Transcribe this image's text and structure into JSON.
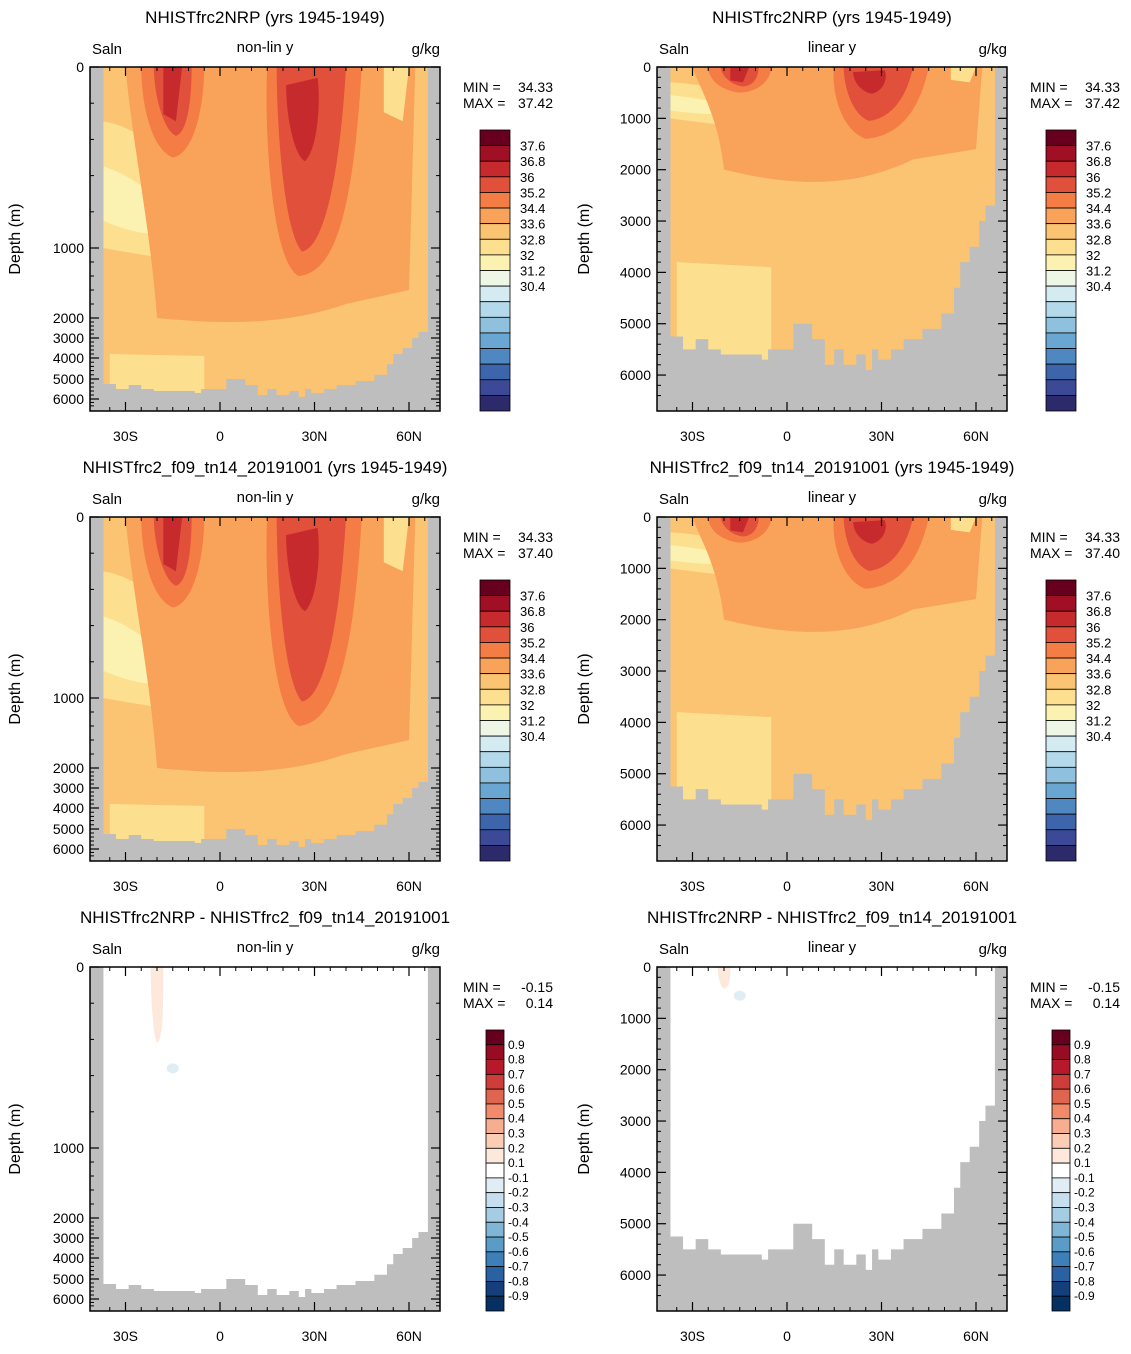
{
  "figure": {
    "colors": {
      "land": "#bebebe",
      "frame": "#000000",
      "background": "#ffffff"
    }
  },
  "chart_data": [
    {
      "type": "heatmap",
      "id": "p1",
      "title": "NHISTfrc2NRP (yrs 1945-1949)",
      "left_label": "Saln",
      "center_label": "non-lin y",
      "right_label": "g/kg",
      "ylabel": "Depth (m)",
      "yscale": "nonlinear",
      "yticks": [
        "0",
        "1000",
        "2000",
        "3000",
        "4000",
        "5000",
        "6000"
      ],
      "xticks": [
        "30S",
        "0",
        "30N",
        "60N"
      ],
      "stats": {
        "min_label": "MIN =",
        "min": "34.33",
        "max_label": "MAX =",
        "max": "37.42"
      },
      "colorbar": {
        "labels": [
          "37.6",
          "36.8",
          "36",
          "35.2",
          "34.4",
          "33.6",
          "32.8",
          "32",
          "31.2",
          "30.4"
        ],
        "colors": [
          "#67001f",
          "#a00f24",
          "#c72a2c",
          "#e0503a",
          "#f47c45",
          "#f9a25a",
          "#fbc472",
          "#fde08f",
          "#fbf2b2",
          "#eef7e6",
          "#d3ebf1",
          "#b4d9ea",
          "#8fc1de",
          "#6aa6d2",
          "#4f87c0",
          "#3d65ab",
          "#3c4996",
          "#2d2a6c"
        ]
      },
      "max_depth_m": 6700
    },
    {
      "type": "heatmap",
      "id": "p2",
      "title": "NHISTfrc2NRP (yrs 1945-1949)",
      "left_label": "Saln",
      "center_label": "linear y",
      "right_label": "g/kg",
      "ylabel": "Depth (m)",
      "yscale": "linear",
      "yticks": [
        "0",
        "1000",
        "2000",
        "3000",
        "4000",
        "5000",
        "6000"
      ],
      "xticks": [
        "30S",
        "0",
        "30N",
        "60N"
      ],
      "stats": {
        "min_label": "MIN =",
        "min": "34.33",
        "max_label": "MAX =",
        "max": "37.42"
      },
      "colorbar": {
        "labels": [
          "37.6",
          "36.8",
          "36",
          "35.2",
          "34.4",
          "33.6",
          "32.8",
          "32",
          "31.2",
          "30.4"
        ],
        "colors": [
          "#67001f",
          "#a00f24",
          "#c72a2c",
          "#e0503a",
          "#f47c45",
          "#f9a25a",
          "#fbc472",
          "#fde08f",
          "#fbf2b2",
          "#eef7e6",
          "#d3ebf1",
          "#b4d9ea",
          "#8fc1de",
          "#6aa6d2",
          "#4f87c0",
          "#3d65ab",
          "#3c4996",
          "#2d2a6c"
        ]
      },
      "max_depth_m": 6700
    },
    {
      "type": "heatmap",
      "id": "p3",
      "title": "NHISTfrc2_f09_tn14_20191001 (yrs 1945-1949)",
      "left_label": "Saln",
      "center_label": "non-lin y",
      "right_label": "g/kg",
      "ylabel": "Depth (m)",
      "yscale": "nonlinear",
      "yticks": [
        "0",
        "1000",
        "2000",
        "3000",
        "4000",
        "5000",
        "6000"
      ],
      "xticks": [
        "30S",
        "0",
        "30N",
        "60N"
      ],
      "stats": {
        "min_label": "MIN =",
        "min": "34.33",
        "max_label": "MAX =",
        "max": "37.40"
      },
      "colorbar": {
        "labels": [
          "37.6",
          "36.8",
          "36",
          "35.2",
          "34.4",
          "33.6",
          "32.8",
          "32",
          "31.2",
          "30.4"
        ],
        "colors": [
          "#67001f",
          "#a00f24",
          "#c72a2c",
          "#e0503a",
          "#f47c45",
          "#f9a25a",
          "#fbc472",
          "#fde08f",
          "#fbf2b2",
          "#eef7e6",
          "#d3ebf1",
          "#b4d9ea",
          "#8fc1de",
          "#6aa6d2",
          "#4f87c0",
          "#3d65ab",
          "#3c4996",
          "#2d2a6c"
        ]
      },
      "max_depth_m": 6700
    },
    {
      "type": "heatmap",
      "id": "p4",
      "title": "NHISTfrc2_f09_tn14_20191001 (yrs 1945-1949)",
      "left_label": "Saln",
      "center_label": "linear y",
      "right_label": "g/kg",
      "ylabel": "Depth (m)",
      "yscale": "linear",
      "yticks": [
        "0",
        "1000",
        "2000",
        "3000",
        "4000",
        "5000",
        "6000"
      ],
      "xticks": [
        "30S",
        "0",
        "30N",
        "60N"
      ],
      "stats": {
        "min_label": "MIN =",
        "min": "34.33",
        "max_label": "MAX =",
        "max": "37.40"
      },
      "colorbar": {
        "labels": [
          "37.6",
          "36.8",
          "36",
          "35.2",
          "34.4",
          "33.6",
          "32.8",
          "32",
          "31.2",
          "30.4"
        ],
        "colors": [
          "#67001f",
          "#a00f24",
          "#c72a2c",
          "#e0503a",
          "#f47c45",
          "#f9a25a",
          "#fbc472",
          "#fde08f",
          "#fbf2b2",
          "#eef7e6",
          "#d3ebf1",
          "#b4d9ea",
          "#8fc1de",
          "#6aa6d2",
          "#4f87c0",
          "#3d65ab",
          "#3c4996",
          "#2d2a6c"
        ]
      },
      "max_depth_m": 6700
    },
    {
      "type": "heatmap",
      "id": "p5",
      "title": "NHISTfrc2NRP - NHISTfrc2_f09_tn14_20191001",
      "left_label": "Saln",
      "center_label": "non-lin y",
      "right_label": "g/kg",
      "ylabel": "Depth (m)",
      "yscale": "nonlinear",
      "yticks": [
        "0",
        "1000",
        "2000",
        "3000",
        "4000",
        "5000",
        "6000"
      ],
      "xticks": [
        "30S",
        "0",
        "30N",
        "60N"
      ],
      "stats": {
        "min_label": "MIN =",
        "min": "-0.15",
        "max_label": "MAX =",
        "max": "0.14"
      },
      "colorbar": {
        "labels": [
          "0.9",
          "0.8",
          "0.7",
          "0.6",
          "0.5",
          "0.4",
          "0.3",
          "0.2",
          "0.1",
          "-0.1",
          "-0.2",
          "-0.3",
          "-0.4",
          "-0.5",
          "-0.6",
          "-0.7",
          "-0.8",
          "-0.9"
        ],
        "colors": [
          "#67001f",
          "#970c23",
          "#b8182b",
          "#cf3d3a",
          "#e0654e",
          "#f08a6a",
          "#f7ad8f",
          "#fbcdb5",
          "#fde8dc",
          "#ffffff",
          "#e0edf5",
          "#c6dfee",
          "#a5cce3",
          "#7fb6d6",
          "#5a9bc8",
          "#3d7fb8",
          "#2961a3",
          "#153f7a",
          "#053061"
        ]
      },
      "max_depth_m": 6700
    },
    {
      "type": "heatmap",
      "id": "p6",
      "title": "NHISTfrc2NRP - NHISTfrc2_f09_tn14_20191001",
      "left_label": "Saln",
      "center_label": "linear y",
      "right_label": "g/kg",
      "ylabel": "Depth (m)",
      "yscale": "linear",
      "yticks": [
        "0",
        "1000",
        "2000",
        "3000",
        "4000",
        "5000",
        "6000"
      ],
      "xticks": [
        "30S",
        "0",
        "30N",
        "60N"
      ],
      "stats": {
        "min_label": "MIN =",
        "min": "-0.15",
        "max_label": "MAX =",
        "max": "0.14"
      },
      "colorbar": {
        "labels": [
          "0.9",
          "0.8",
          "0.7",
          "0.6",
          "0.5",
          "0.4",
          "0.3",
          "0.2",
          "0.1",
          "-0.1",
          "-0.2",
          "-0.3",
          "-0.4",
          "-0.5",
          "-0.6",
          "-0.7",
          "-0.8",
          "-0.9"
        ],
        "colors": [
          "#67001f",
          "#970c23",
          "#b8182b",
          "#cf3d3a",
          "#e0654e",
          "#f08a6a",
          "#f7ad8f",
          "#fbcdb5",
          "#fde8dc",
          "#ffffff",
          "#e0edf5",
          "#c6dfee",
          "#a5cce3",
          "#7fb6d6",
          "#5a9bc8",
          "#3d7fb8",
          "#2961a3",
          "#153f7a",
          "#053061"
        ]
      },
      "max_depth_m": 6700
    }
  ]
}
